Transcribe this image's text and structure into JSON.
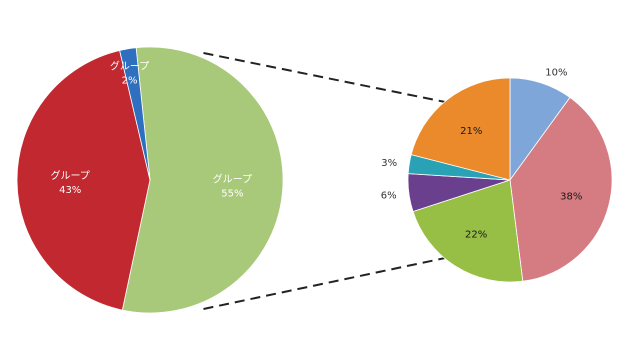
{
  "chart_data": [
    {
      "type": "pie",
      "title": "",
      "slices": [
        {
          "label": "グループ",
          "value_text": "55%",
          "value": 55,
          "color": "#a9c97a"
        },
        {
          "label": "グループ",
          "value_text": "43%",
          "value": 43,
          "color": "#c1282f"
        },
        {
          "label": "グループ",
          "value_text": "2%",
          "value": 2,
          "color": "#2f6fbf"
        }
      ]
    },
    {
      "type": "pie",
      "title": "",
      "exploded_from": "small slice of main pie",
      "slices": [
        {
          "label": "",
          "value_text": "10%",
          "value": 10,
          "color": "#7ea6d8"
        },
        {
          "label": "",
          "value_text": "38%",
          "value": 38,
          "color": "#d57b82"
        },
        {
          "label": "",
          "value_text": "22%",
          "value": 22,
          "color": "#97bf45"
        },
        {
          "label": "",
          "value_text": "6%",
          "value": 6,
          "color": "#6a3f8e"
        },
        {
          "label": "",
          "value_text": "3%",
          "value": 3,
          "color": "#2aa2b6"
        },
        {
          "label": "",
          "value_text": "21%",
          "value": 21,
          "color": "#ea8a2a"
        }
      ]
    }
  ]
}
